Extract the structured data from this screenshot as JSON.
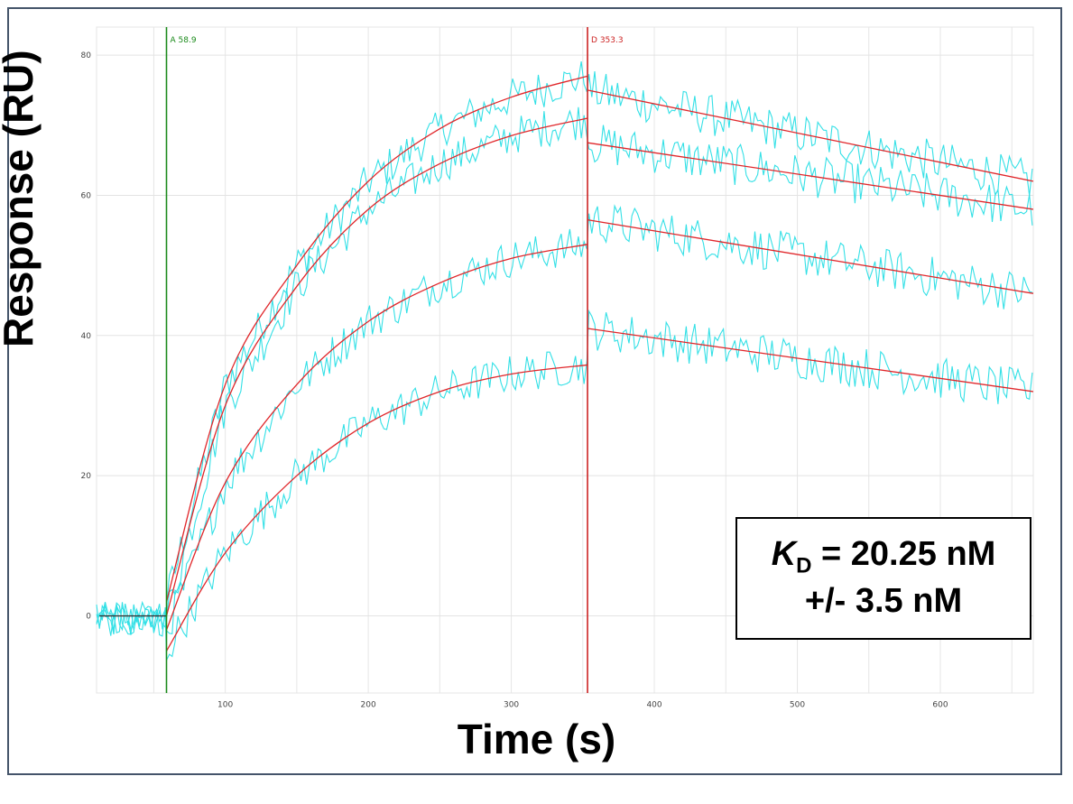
{
  "chart_data": {
    "type": "line",
    "xlabel": "Time (s)",
    "ylabel": "Response (RU)",
    "xlim": [
      10,
      665
    ],
    "ylim": [
      -11,
      84
    ],
    "xticks": [
      100,
      200,
      300,
      400,
      500,
      600
    ],
    "yticks": [
      0,
      20,
      40,
      60,
      80
    ],
    "grid": true,
    "markers": [
      {
        "label": "A 58.9",
        "x": 58.9,
        "color": "#1a8a1a"
      },
      {
        "label": "D 353.3",
        "x": 353.3,
        "color": "#cc2222"
      }
    ],
    "association_start": 58.9,
    "dissociation_start": 353.3,
    "end_time": 665,
    "baseline_end": 10,
    "raw_color": "#33e0e6",
    "fit_color": "#e0262a",
    "series": [
      {
        "assoc": [
          [
            58.9,
            2
          ],
          [
            100,
            33
          ],
          [
            150,
            50
          ],
          [
            200,
            62
          ],
          [
            250,
            69.5
          ],
          [
            300,
            74
          ],
          [
            353.3,
            77
          ]
        ],
        "dissoc": [
          [
            353.3,
            75
          ],
          [
            665,
            62
          ]
        ]
      },
      {
        "assoc": [
          [
            58.9,
            0
          ],
          [
            100,
            30
          ],
          [
            150,
            47
          ],
          [
            200,
            58
          ],
          [
            250,
            64.5
          ],
          [
            300,
            68.5
          ],
          [
            353.3,
            71
          ]
        ],
        "dissoc": [
          [
            353.3,
            67.5
          ],
          [
            665,
            58
          ]
        ]
      },
      {
        "assoc": [
          [
            58.9,
            -2
          ],
          [
            100,
            19
          ],
          [
            150,
            33
          ],
          [
            200,
            42
          ],
          [
            250,
            47.5
          ],
          [
            300,
            51
          ],
          [
            353.3,
            53
          ]
        ],
        "dissoc": [
          [
            353.3,
            56.5
          ],
          [
            665,
            46
          ]
        ]
      },
      {
        "assoc": [
          [
            58.9,
            -5
          ],
          [
            100,
            9
          ],
          [
            150,
            20
          ],
          [
            200,
            27.5
          ],
          [
            250,
            32
          ],
          [
            300,
            34.5
          ],
          [
            353.3,
            35.8
          ]
        ],
        "dissoc": [
          [
            353.3,
            41
          ],
          [
            665,
            32
          ]
        ]
      }
    ]
  },
  "annotation": {
    "k": "K",
    "sub": "D",
    "line1_rest": " = 20.25 nM",
    "line2": "+/- 3.5 nM"
  }
}
